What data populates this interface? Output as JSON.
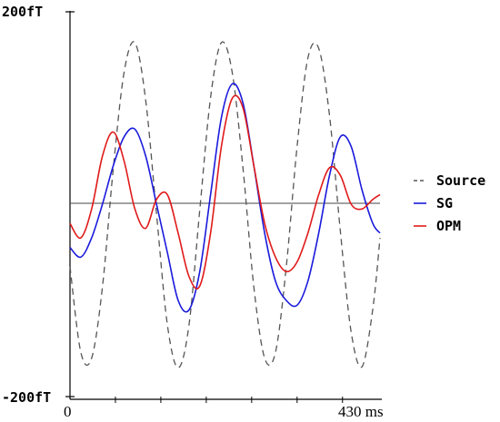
{
  "chart_data": {
    "type": "line",
    "title": "",
    "xlabel": "",
    "ylabel": "",
    "xlim": [
      0,
      430
    ],
    "ylim": [
      -200,
      200
    ],
    "y_tick_labels": {
      "top": "200fT",
      "bottom": "-200fT"
    },
    "x_tick_labels": {
      "start": "0",
      "end": "430 ms"
    },
    "x_minor_ticks": [
      63,
      126,
      189,
      252,
      315,
      378
    ],
    "zero_line": true,
    "grid": false,
    "legend_position": "right",
    "x": [
      0,
      15,
      30,
      45,
      60,
      75,
      90,
      105,
      120,
      135,
      150,
      165,
      180,
      195,
      210,
      225,
      240,
      255,
      270,
      285,
      300,
      315,
      330,
      345,
      360,
      375,
      390,
      405,
      420,
      430
    ],
    "series": [
      {
        "name": "Source",
        "color": "#555555",
        "dash": true,
        "values": [
          -65,
          -154,
          -160,
          -86,
          37,
          137,
          168,
          108,
          -10,
          -125,
          -170,
          -126,
          -6,
          111,
          168,
          137,
          37,
          -86,
          -160,
          -154,
          -65,
          60,
          152,
          162,
          92,
          -28,
          -133,
          -169,
          -109,
          -35
        ]
      },
      {
        "name": "SG",
        "color": "#1a1adc",
        "dash": false,
        "values": [
          -45,
          -55,
          -35,
          0,
          40,
          70,
          78,
          50,
          0,
          -50,
          -100,
          -110,
          -70,
          10,
          90,
          125,
          105,
          40,
          -30,
          -80,
          -100,
          -105,
          -80,
          -30,
          30,
          70,
          60,
          15,
          -20,
          -30
        ]
      },
      {
        "name": "OPM",
        "color": "#e01a1a",
        "dash": false,
        "values": [
          -20,
          -35,
          -5,
          50,
          75,
          45,
          -5,
          -25,
          5,
          10,
          -30,
          -75,
          -85,
          -30,
          60,
          110,
          100,
          40,
          -20,
          -55,
          -70,
          -60,
          -30,
          10,
          38,
          30,
          0,
          -5,
          5,
          10
        ]
      }
    ]
  }
}
